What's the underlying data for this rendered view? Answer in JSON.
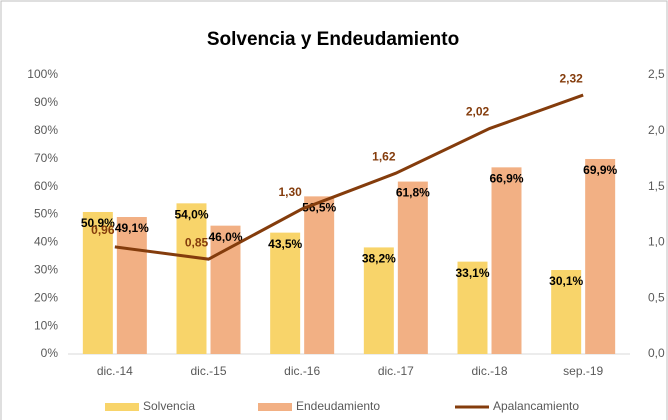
{
  "chart_data": {
    "type": "combo",
    "title": "Solvencia y Endeudamiento",
    "categories": [
      "dic.-14",
      "dic.-15",
      "dic.-16",
      "dic.-17",
      "dic.-18",
      "sep.-19"
    ],
    "series": [
      {
        "name": "Solvencia",
        "type": "bar",
        "color": "#f8d46a",
        "values": [
          50.9,
          54.0,
          43.5,
          38.2,
          33.1,
          30.1
        ],
        "value_labels": [
          "50,9%",
          "54,0%",
          "43,5%",
          "38,2%",
          "33,1%",
          "30,1%"
        ]
      },
      {
        "name": "Endeudamiento",
        "type": "bar",
        "color": "#f2b084",
        "values": [
          49.1,
          46.0,
          56.5,
          61.8,
          66.9,
          69.9
        ],
        "value_labels": [
          "49,1%",
          "46,0%",
          "56,5%",
          "61,8%",
          "66,9%",
          "69,9%"
        ]
      },
      {
        "name": "Apalancamiento",
        "type": "line",
        "axis": "y2",
        "color": "#843c0c",
        "values": [
          0.96,
          0.85,
          1.3,
          1.62,
          2.02,
          2.32
        ],
        "value_labels": [
          "0,96",
          "0,85",
          "1,30",
          "1,62",
          "2,02",
          "2,32"
        ]
      }
    ],
    "ylim": [
      0,
      100
    ],
    "yticks": [
      {
        "value": 0,
        "label": "0%"
      },
      {
        "value": 10,
        "label": "10%"
      },
      {
        "value": 20,
        "label": "20%"
      },
      {
        "value": 30,
        "label": "30%"
      },
      {
        "value": 40,
        "label": "40%"
      },
      {
        "value": 50,
        "label": "50%"
      },
      {
        "value": 60,
        "label": "60%"
      },
      {
        "value": 70,
        "label": "70%"
      },
      {
        "value": 80,
        "label": "80%"
      },
      {
        "value": 90,
        "label": "90%"
      },
      {
        "value": 100,
        "label": "100%"
      }
    ],
    "y2lim": [
      0,
      2.5
    ],
    "y2ticks": [
      {
        "value": 0,
        "label": "0,0"
      },
      {
        "value": 0.5,
        "label": "0,5"
      },
      {
        "value": 1.0,
        "label": "1,0"
      },
      {
        "value": 1.5,
        "label": "1,5"
      },
      {
        "value": 2.0,
        "label": "2,0"
      },
      {
        "value": 2.5,
        "label": "2,5"
      }
    ],
    "grid": false,
    "legend": "bottom"
  }
}
